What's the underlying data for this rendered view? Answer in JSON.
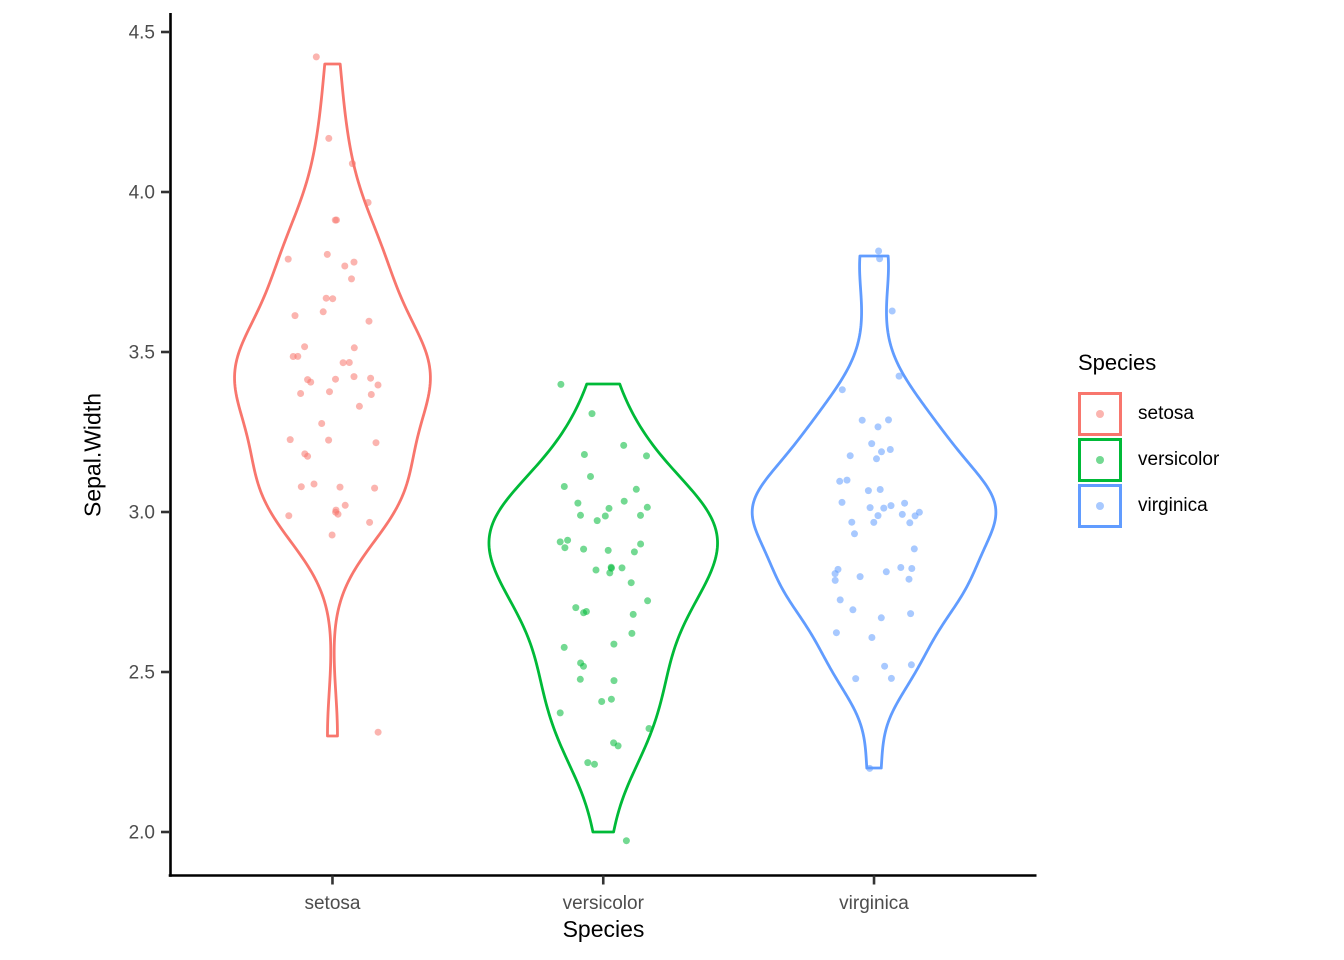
{
  "chart_data": {
    "type": "violin",
    "title": "",
    "xlabel": "Species",
    "ylabel": "Sepal.Width",
    "categories": [
      "setosa",
      "versicolor",
      "virginica"
    ],
    "y_ticks": [
      "2.0",
      "2.5",
      "3.0",
      "3.5",
      "4.0",
      "4.5"
    ],
    "ylim": [
      1.88,
      4.55
    ],
    "grid": "off",
    "legend": {
      "title": "Species",
      "position": "right",
      "entries": [
        "setosa",
        "versicolor",
        "virginica"
      ]
    },
    "style": {
      "axis_text_color": "#4D4D4D",
      "axis_line_color": "#000000",
      "tick_color": "#333333",
      "point_opacity": 0.55,
      "violin_trim": true,
      "jitter": true
    },
    "series": [
      {
        "name": "setosa",
        "color": "#F8766D",
        "values": [
          3.5,
          3.0,
          3.2,
          3.1,
          3.6,
          3.9,
          3.4,
          3.4,
          2.9,
          3.1,
          3.7,
          3.4,
          3.0,
          3.0,
          4.0,
          4.4,
          3.9,
          3.5,
          3.8,
          3.8,
          3.4,
          3.7,
          3.6,
          3.3,
          3.4,
          3.0,
          3.4,
          3.5,
          3.4,
          3.2,
          3.1,
          3.4,
          4.1,
          4.2,
          3.1,
          3.2,
          3.5,
          3.6,
          3.0,
          3.4,
          3.5,
          2.3,
          3.2,
          3.5,
          3.8,
          3.0,
          3.8,
          3.2,
          3.7,
          3.3
        ]
      },
      {
        "name": "versicolor",
        "color": "#00BA38",
        "values": [
          3.2,
          3.2,
          3.1,
          2.3,
          2.8,
          2.8,
          3.3,
          2.4,
          2.9,
          2.7,
          2.0,
          3.0,
          2.2,
          2.9,
          2.9,
          3.1,
          3.0,
          2.7,
          2.2,
          2.5,
          3.2,
          2.8,
          2.5,
          2.8,
          2.9,
          3.0,
          2.8,
          3.0,
          2.9,
          2.6,
          2.4,
          2.4,
          2.7,
          2.7,
          3.0,
          3.4,
          3.1,
          2.3,
          3.0,
          2.5,
          2.6,
          3.0,
          2.6,
          2.3,
          2.7,
          3.0,
          2.9,
          2.9,
          2.5,
          2.8
        ]
      },
      {
        "name": "virginica",
        "color": "#619CFF",
        "values": [
          3.3,
          2.7,
          3.0,
          2.9,
          3.0,
          3.0,
          2.5,
          2.9,
          2.5,
          3.6,
          3.2,
          2.7,
          3.0,
          2.5,
          2.8,
          3.2,
          3.0,
          3.8,
          2.6,
          2.2,
          3.2,
          2.8,
          2.8,
          2.7,
          3.3,
          3.2,
          2.8,
          3.0,
          2.8,
          3.0,
          2.8,
          3.8,
          2.8,
          2.8,
          2.6,
          3.0,
          3.4,
          3.1,
          3.0,
          3.1,
          3.1,
          3.1,
          2.7,
          3.2,
          3.3,
          3.0,
          2.5,
          3.0,
          3.4,
          3.0
        ]
      }
    ]
  }
}
